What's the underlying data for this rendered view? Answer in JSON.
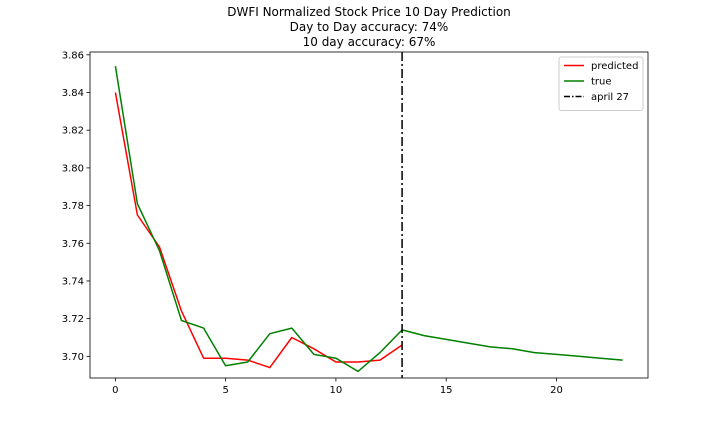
{
  "chart_data": {
    "type": "line",
    "title_lines": [
      "DWFI Normalized Stock Price 10 Day Prediction",
      "Day to Day accuracy: 74%",
      "10 day accuracy: 67%"
    ],
    "xlabel": "",
    "ylabel": "",
    "xlim": [
      -1.15,
      24.15
    ],
    "ylim": [
      3.6885,
      3.8615
    ],
    "x_ticks": [
      0,
      5,
      10,
      15,
      20
    ],
    "y_ticks": [
      3.7,
      3.72,
      3.74,
      3.76,
      3.78,
      3.8,
      3.82,
      3.84,
      3.86
    ],
    "grid": false,
    "legend_position": "upper right",
    "series": [
      {
        "name": "predicted",
        "color": "#ff0000",
        "style": "solid",
        "x": [
          0,
          1,
          2,
          3,
          4,
          5,
          6,
          7,
          8,
          9,
          10,
          11,
          12,
          13
        ],
        "y": [
          3.84,
          3.775,
          3.758,
          3.724,
          3.699,
          3.699,
          3.698,
          3.694,
          3.71,
          3.704,
          3.697,
          3.697,
          3.698,
          3.706
        ]
      },
      {
        "name": "true",
        "color": "#008000",
        "style": "solid",
        "x": [
          0,
          1,
          2,
          3,
          4,
          5,
          6,
          7,
          8,
          9,
          10,
          11,
          12,
          13,
          14,
          15,
          16,
          17,
          18,
          19,
          20,
          21,
          22,
          23
        ],
        "y": [
          3.854,
          3.781,
          3.756,
          3.719,
          3.715,
          3.695,
          3.697,
          3.712,
          3.715,
          3.701,
          3.699,
          3.692,
          3.702,
          3.714,
          3.711,
          3.709,
          3.707,
          3.705,
          3.704,
          3.702,
          3.701,
          3.7,
          3.699,
          3.698
        ]
      }
    ],
    "vlines": [
      {
        "name": "april 27",
        "x": 13,
        "color": "#000000",
        "style": "dashdot"
      }
    ]
  }
}
